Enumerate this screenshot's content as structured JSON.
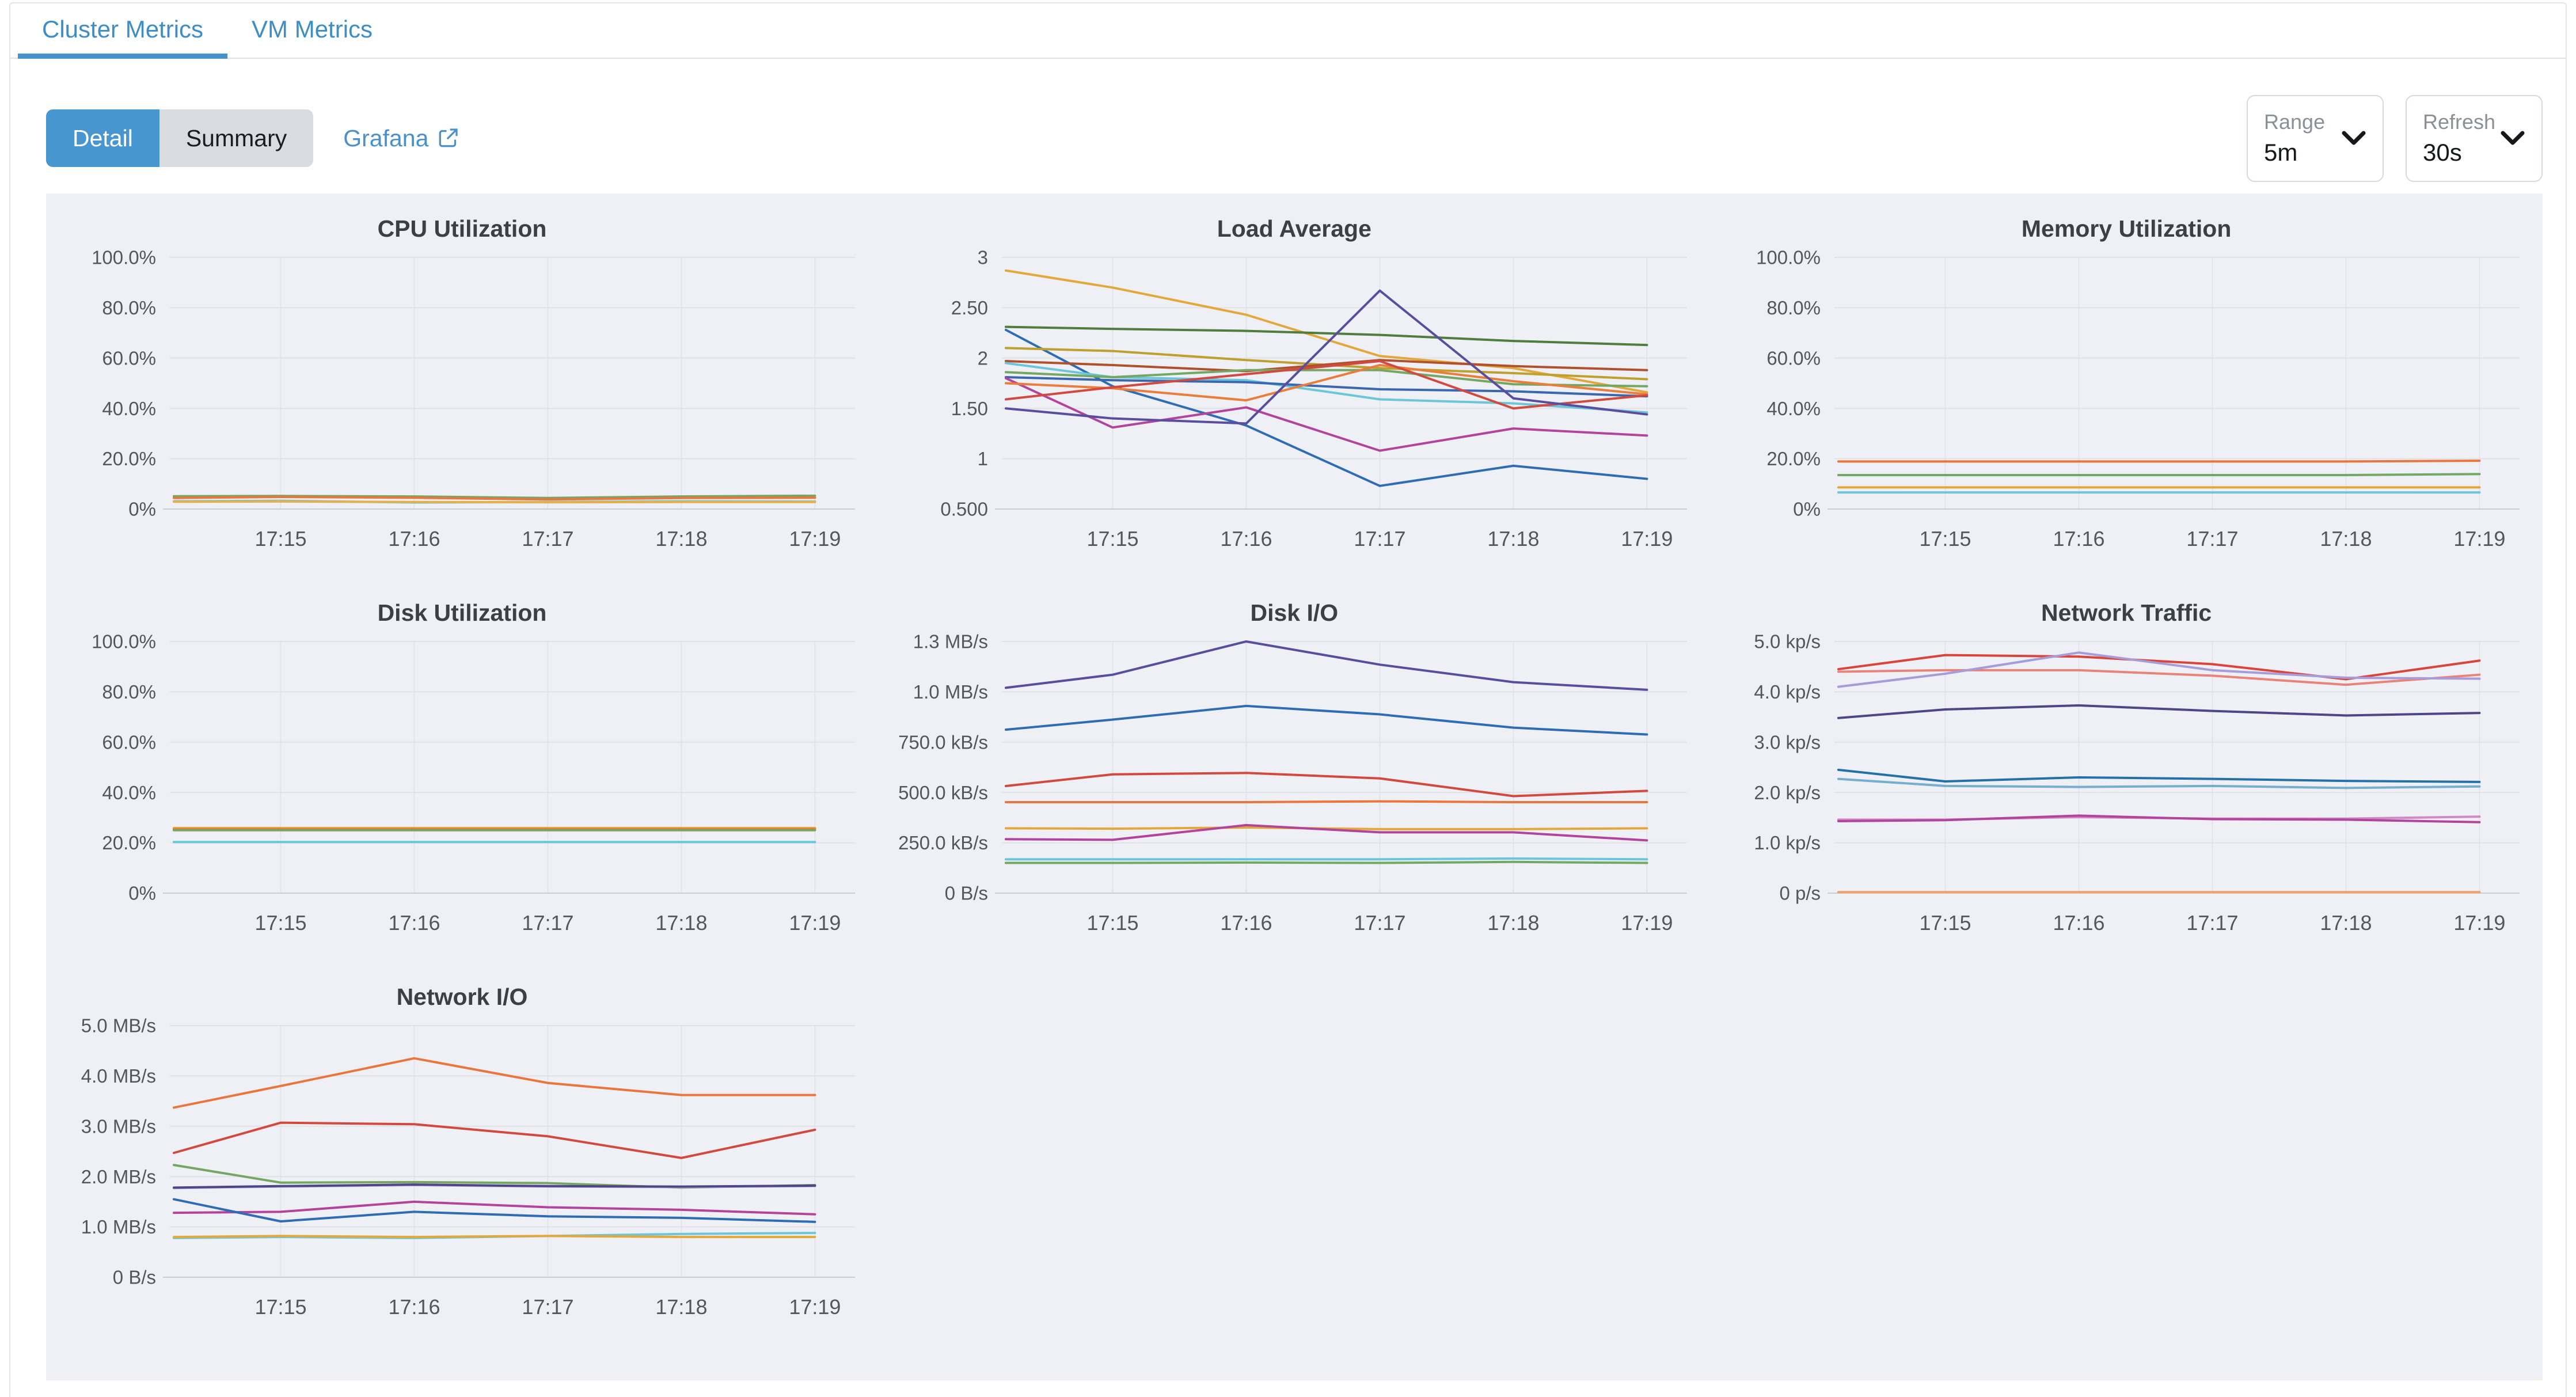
{
  "tabs": [
    {
      "label": "Cluster Metrics",
      "active": true
    },
    {
      "label": "VM Metrics",
      "active": false
    }
  ],
  "toolbar": {
    "detail_label": "Detail",
    "summary_label": "Summary",
    "grafana_label": "Grafana",
    "range_label": "Range",
    "range_value": "5m",
    "refresh_label": "Refresh",
    "refresh_value": "30s"
  },
  "colors": {
    "accent_blue": "#4896cf",
    "link_blue": "#4a90cb",
    "panel_bg": "#eff0f5"
  },
  "chart_data": [
    {
      "type": "line",
      "title": "CPU Utilization",
      "x": [
        14.2,
        15,
        16,
        17,
        18,
        19
      ],
      "x_domain": [
        14.17,
        19.3
      ],
      "x_ticks": [
        {
          "v": 15,
          "label": "17:15"
        },
        {
          "v": 16,
          "label": "17:16"
        },
        {
          "v": 17,
          "label": "17:17"
        },
        {
          "v": 18,
          "label": "17:18"
        },
        {
          "v": 19,
          "label": "17:19"
        }
      ],
      "ylim": [
        0,
        100
      ],
      "y_ticks": [
        {
          "v": 0,
          "label": "0%"
        },
        {
          "v": 20,
          "label": "20.0%"
        },
        {
          "v": 40,
          "label": "40.0%"
        },
        {
          "v": 60,
          "label": "60.0%"
        },
        {
          "v": 80,
          "label": "80.0%"
        },
        {
          "v": 100,
          "label": "100.0%"
        }
      ],
      "series": [
        {
          "color": "#73a763",
          "values": [
            5.1,
            5.2,
            5.0,
            4.4,
            5.0,
            5.3
          ]
        },
        {
          "color": "#e8763d",
          "values": [
            4.4,
            4.8,
            4.5,
            3.8,
            4.4,
            4.5
          ]
        },
        {
          "color": "#6cc6d9",
          "values": [
            3.1,
            3.3,
            2.6,
            2.8,
            3.1,
            3.0
          ]
        },
        {
          "color": "#e3b04c",
          "values": [
            2.9,
            3.0,
            2.8,
            2.7,
            2.8,
            2.8
          ]
        }
      ]
    },
    {
      "type": "line",
      "title": "Load Average",
      "x": [
        14.2,
        15,
        16,
        17,
        18,
        19
      ],
      "x_domain": [
        14.17,
        19.3
      ],
      "x_ticks": [
        {
          "v": 15,
          "label": "17:15"
        },
        {
          "v": 16,
          "label": "17:16"
        },
        {
          "v": 17,
          "label": "17:17"
        },
        {
          "v": 18,
          "label": "17:18"
        },
        {
          "v": 19,
          "label": "17:19"
        }
      ],
      "ylim": [
        0.5,
        3
      ],
      "y_ticks": [
        {
          "v": 0.5,
          "label": "0.500"
        },
        {
          "v": 1,
          "label": "1"
        },
        {
          "v": 1.5,
          "label": "1.50"
        },
        {
          "v": 2,
          "label": "2"
        },
        {
          "v": 2.5,
          "label": "2.50"
        },
        {
          "v": 3,
          "label": "3"
        }
      ],
      "series": [
        {
          "color": "#e3a83b",
          "values": [
            2.87,
            2.7,
            2.43,
            2.02,
            1.9,
            1.66
          ]
        },
        {
          "color": "#4e7d3e",
          "values": [
            2.31,
            2.29,
            2.27,
            2.23,
            2.17,
            2.13
          ]
        },
        {
          "color": "#2e6db4",
          "values": [
            2.28,
            1.72,
            1.33,
            0.73,
            0.93,
            0.8
          ]
        },
        {
          "color": "#bfa02e",
          "values": [
            2.1,
            2.07,
            1.98,
            1.9,
            1.85,
            1.79
          ]
        },
        {
          "color": "#b0512d",
          "values": [
            1.97,
            1.93,
            1.87,
            1.98,
            1.92,
            1.88
          ]
        },
        {
          "color": "#6cc6d9",
          "values": [
            1.95,
            1.81,
            1.78,
            1.59,
            1.55,
            1.46
          ]
        },
        {
          "color": "#73a763",
          "values": [
            1.86,
            1.81,
            1.88,
            1.88,
            1.74,
            1.72
          ]
        },
        {
          "color": "#3a67ae",
          "values": [
            1.81,
            1.78,
            1.76,
            1.69,
            1.67,
            1.62
          ]
        },
        {
          "color": "#b3449c",
          "values": [
            1.8,
            1.31,
            1.51,
            1.08,
            1.3,
            1.23
          ]
        },
        {
          "color": "#e87d3c",
          "values": [
            1.75,
            1.7,
            1.58,
            1.93,
            1.77,
            1.64
          ]
        },
        {
          "color": "#d1493f",
          "values": [
            1.59,
            1.71,
            1.84,
            1.97,
            1.5,
            1.63
          ]
        },
        {
          "color": "#5b4d9d",
          "values": [
            1.5,
            1.4,
            1.35,
            2.67,
            1.6,
            1.44
          ]
        }
      ]
    },
    {
      "type": "line",
      "title": "Memory Utilization",
      "x": [
        14.2,
        15,
        16,
        17,
        18,
        19
      ],
      "x_domain": [
        14.17,
        19.3
      ],
      "x_ticks": [
        {
          "v": 15,
          "label": "17:15"
        },
        {
          "v": 16,
          "label": "17:16"
        },
        {
          "v": 17,
          "label": "17:17"
        },
        {
          "v": 18,
          "label": "17:18"
        },
        {
          "v": 19,
          "label": "17:19"
        }
      ],
      "ylim": [
        0,
        100
      ],
      "y_ticks": [
        {
          "v": 0,
          "label": "0%"
        },
        {
          "v": 20,
          "label": "20.0%"
        },
        {
          "v": 40,
          "label": "40.0%"
        },
        {
          "v": 60,
          "label": "60.0%"
        },
        {
          "v": 80,
          "label": "80.0%"
        },
        {
          "v": 100,
          "label": "100.0%"
        }
      ],
      "series": [
        {
          "color": "#e8763d",
          "values": [
            18.9,
            18.9,
            18.9,
            18.9,
            18.9,
            19.2
          ]
        },
        {
          "color": "#73a763",
          "values": [
            13.5,
            13.5,
            13.5,
            13.5,
            13.5,
            13.9
          ]
        },
        {
          "color": "#e3a83b",
          "values": [
            8.6,
            8.6,
            8.6,
            8.6,
            8.6,
            8.6
          ]
        },
        {
          "color": "#6cc6d9",
          "values": [
            6.6,
            6.6,
            6.6,
            6.6,
            6.6,
            6.6
          ]
        }
      ]
    },
    {
      "type": "line",
      "title": "Disk Utilization",
      "x": [
        14.2,
        15,
        16,
        17,
        18,
        19
      ],
      "x_domain": [
        14.17,
        19.3
      ],
      "x_ticks": [
        {
          "v": 15,
          "label": "17:15"
        },
        {
          "v": 16,
          "label": "17:16"
        },
        {
          "v": 17,
          "label": "17:17"
        },
        {
          "v": 18,
          "label": "17:18"
        },
        {
          "v": 19,
          "label": "17:19"
        }
      ],
      "ylim": [
        0,
        100
      ],
      "y_ticks": [
        {
          "v": 0,
          "label": "0%"
        },
        {
          "v": 20,
          "label": "20.0%"
        },
        {
          "v": 40,
          "label": "40.0%"
        },
        {
          "v": 60,
          "label": "60.0%"
        },
        {
          "v": 80,
          "label": "80.0%"
        },
        {
          "v": 100,
          "label": "100.0%"
        }
      ],
      "series": [
        {
          "color": "#e3a83b",
          "values": [
            25.9,
            25.9,
            25.9,
            25.9,
            25.9,
            25.9
          ]
        },
        {
          "color": "#e8763d",
          "values": [
            25.4,
            25.4,
            25.4,
            25.4,
            25.4,
            25.4
          ]
        },
        {
          "color": "#73a763",
          "values": [
            25.0,
            25.0,
            25.0,
            25.0,
            25.0,
            25.0
          ]
        },
        {
          "color": "#6cc6d9",
          "values": [
            20.3,
            20.3,
            20.3,
            20.3,
            20.3,
            20.3
          ]
        }
      ]
    },
    {
      "type": "line",
      "title": "Disk I/O",
      "x": [
        14.2,
        15,
        16,
        17,
        18,
        19
      ],
      "x_domain": [
        14.17,
        19.3
      ],
      "x_ticks": [
        {
          "v": 15,
          "label": "17:15"
        },
        {
          "v": 16,
          "label": "17:16"
        },
        {
          "v": 17,
          "label": "17:17"
        },
        {
          "v": 18,
          "label": "17:18"
        },
        {
          "v": 19,
          "label": "17:19"
        }
      ],
      "ylim": [
        0,
        1250
      ],
      "y_ticks": [
        {
          "v": 0,
          "label": "0 B/s"
        },
        {
          "v": 250,
          "label": "250.0 kB/s"
        },
        {
          "v": 500,
          "label": "500.0 kB/s"
        },
        {
          "v": 750,
          "label": "750.0 kB/s"
        },
        {
          "v": 1000,
          "label": "1.0 MB/s"
        },
        {
          "v": 1250,
          "label": "1.3 MB/s"
        }
      ],
      "series": [
        {
          "color": "#5b4d9d",
          "values": [
            1020,
            1085,
            1250,
            1135,
            1048,
            1010
          ]
        },
        {
          "color": "#2e6db4",
          "values": [
            812,
            862,
            930,
            888,
            822,
            788
          ]
        },
        {
          "color": "#d1493f",
          "values": [
            532,
            590,
            597,
            570,
            482,
            508
          ]
        },
        {
          "color": "#e8763d",
          "values": [
            452,
            452,
            452,
            456,
            452,
            452
          ]
        },
        {
          "color": "#e3a83b",
          "values": [
            322,
            320,
            326,
            318,
            318,
            322
          ]
        },
        {
          "color": "#b3449c",
          "values": [
            268,
            265,
            338,
            302,
            302,
            262
          ]
        },
        {
          "color": "#6cc6d9",
          "values": [
            168,
            168,
            168,
            168,
            172,
            168
          ]
        },
        {
          "color": "#73a763",
          "values": [
            150,
            150,
            152,
            150,
            155,
            150
          ]
        }
      ]
    },
    {
      "type": "line",
      "title": "Network Traffic",
      "x": [
        14.2,
        15,
        16,
        17,
        18,
        19
      ],
      "x_domain": [
        14.17,
        19.3
      ],
      "x_ticks": [
        {
          "v": 15,
          "label": "17:15"
        },
        {
          "v": 16,
          "label": "17:16"
        },
        {
          "v": 17,
          "label": "17:17"
        },
        {
          "v": 18,
          "label": "17:18"
        },
        {
          "v": 19,
          "label": "17:19"
        }
      ],
      "ylim": [
        0,
        5
      ],
      "y_ticks": [
        {
          "v": 0,
          "label": "0 p/s"
        },
        {
          "v": 1,
          "label": "1.0 kp/s"
        },
        {
          "v": 2,
          "label": "2.0 kp/s"
        },
        {
          "v": 3,
          "label": "3.0 kp/s"
        },
        {
          "v": 4,
          "label": "4.0 kp/s"
        },
        {
          "v": 5,
          "label": "5.0 kp/s"
        }
      ],
      "series": [
        {
          "color": "#d9453a",
          "values": [
            4.45,
            4.73,
            4.7,
            4.55,
            4.25,
            4.62
          ]
        },
        {
          "color": "#e8837a",
          "values": [
            4.4,
            4.43,
            4.43,
            4.32,
            4.14,
            4.34
          ]
        },
        {
          "color": "#a79bd8",
          "values": [
            4.1,
            4.36,
            4.78,
            4.43,
            4.28,
            4.26
          ]
        },
        {
          "color": "#4f4587",
          "values": [
            3.48,
            3.65,
            3.73,
            3.62,
            3.53,
            3.58
          ]
        },
        {
          "color": "#2471a8",
          "values": [
            2.45,
            2.22,
            2.3,
            2.27,
            2.23,
            2.21
          ]
        },
        {
          "color": "#77aed0",
          "values": [
            2.27,
            2.13,
            2.11,
            2.13,
            2.09,
            2.12
          ]
        },
        {
          "color": "#cf8ac4",
          "values": [
            1.46,
            1.46,
            1.51,
            1.48,
            1.48,
            1.52
          ]
        },
        {
          "color": "#b3449c",
          "values": [
            1.43,
            1.45,
            1.54,
            1.47,
            1.46,
            1.41
          ]
        },
        {
          "color": "#f0a266",
          "values": [
            0.02,
            0.02,
            0.02,
            0.02,
            0.02,
            0.02
          ]
        }
      ]
    },
    {
      "type": "line",
      "title": "Network I/O",
      "x": [
        14.2,
        15,
        16,
        17,
        18,
        19
      ],
      "x_domain": [
        14.17,
        19.3
      ],
      "x_ticks": [
        {
          "v": 15,
          "label": "17:15"
        },
        {
          "v": 16,
          "label": "17:16"
        },
        {
          "v": 17,
          "label": "17:17"
        },
        {
          "v": 18,
          "label": "17:18"
        },
        {
          "v": 19,
          "label": "17:19"
        }
      ],
      "ylim": [
        0,
        5
      ],
      "y_ticks": [
        {
          "v": 0,
          "label": "0 B/s"
        },
        {
          "v": 1,
          "label": "1.0 MB/s"
        },
        {
          "v": 2,
          "label": "2.0 MB/s"
        },
        {
          "v": 3,
          "label": "3.0 MB/s"
        },
        {
          "v": 4,
          "label": "4.0 MB/s"
        },
        {
          "v": 5,
          "label": "5.0 MB/s"
        }
      ],
      "series": [
        {
          "color": "#e8763d",
          "values": [
            3.37,
            3.8,
            4.35,
            3.86,
            3.62,
            3.62
          ]
        },
        {
          "color": "#d1493f",
          "values": [
            2.47,
            3.07,
            3.04,
            2.8,
            2.37,
            2.93
          ]
        },
        {
          "color": "#73a763",
          "values": [
            2.23,
            1.88,
            1.89,
            1.87,
            1.78,
            1.83
          ]
        },
        {
          "color": "#bab4dd",
          "values": [
            1.77,
            1.8,
            1.83,
            1.8,
            1.79,
            1.81
          ]
        },
        {
          "color": "#4f4587",
          "values": [
            1.78,
            1.81,
            1.84,
            1.81,
            1.8,
            1.82
          ]
        },
        {
          "color": "#b3449c",
          "values": [
            1.28,
            1.3,
            1.5,
            1.39,
            1.34,
            1.25
          ]
        },
        {
          "color": "#2e6db4",
          "values": [
            1.55,
            1.11,
            1.3,
            1.21,
            1.18,
            1.1
          ]
        },
        {
          "color": "#6cc6d9",
          "values": [
            0.78,
            0.8,
            0.78,
            0.82,
            0.86,
            0.88
          ]
        },
        {
          "color": "#e3a83b",
          "values": [
            0.8,
            0.82,
            0.8,
            0.82,
            0.8,
            0.8
          ]
        }
      ]
    }
  ]
}
